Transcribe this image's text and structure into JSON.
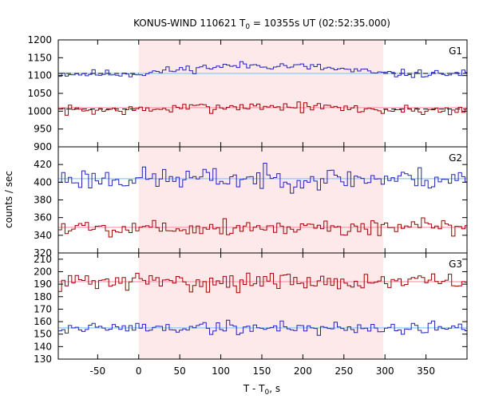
{
  "chart_data": {
    "type": "line",
    "title": "KONUS-WIND 110621 T",
    "title_sub": "0",
    "title_rest": " = 10355s UT (02:52:35.000)",
    "xlabel": "T - T",
    "xlabel_sub": "0",
    "xlabel_rest": ", s",
    "ylabel": "counts / sec",
    "xlim": [
      -98,
      400
    ],
    "x_ticks": [
      -50,
      0,
      50,
      100,
      150,
      200,
      250,
      300,
      350
    ],
    "x_tick_labels": [
      "-50",
      "0",
      "50",
      "100",
      "150",
      "200",
      "250",
      "300",
      "350"
    ],
    "shaded_interval": [
      0,
      298
    ],
    "bin_width_s": 4.096,
    "colors": {
      "blue": "#2222bb",
      "red": "#a00000",
      "blue_fit": "#87cefa",
      "red_fit": "#ff9ab2",
      "dashed": "#000000",
      "shade": "#fde8ea"
    },
    "panels": [
      {
        "label": "G1",
        "ylim": [
          900,
          1200
        ],
        "y_ticks": [
          900,
          950,
          1000,
          1050,
          1100,
          1150,
          1200
        ],
        "y_tick_labels": [
          "900",
          "950",
          "1000",
          "1050",
          "1100",
          "1150",
          "1200"
        ],
        "series": [
          {
            "color": "blue",
            "base": 1105,
            "amp": 8,
            "src": 26,
            "seed": 11,
            "fit": 1106,
            "bg_dashed": 1106,
            "bg_dashed_ranges": [
              [
                -98,
                0
              ],
              [
                298,
                400
              ]
            ]
          },
          {
            "color": "red",
            "base": 1003,
            "amp": 10,
            "src": 12,
            "seed": 7,
            "fit": 1010,
            "bg_dashed": 1006,
            "bg_dashed_ranges": [
              [
                -98,
                0
              ],
              [
                298,
                400
              ]
            ]
          }
        ]
      },
      {
        "label": "G2",
        "ylim": [
          320,
          440
        ],
        "y_ticks": [
          320,
          340,
          360,
          380,
          400,
          420
        ],
        "y_tick_labels": [
          "320",
          "340",
          "360",
          "380",
          "400",
          "420"
        ],
        "series": [
          {
            "color": "blue",
            "base": 404,
            "amp": 9,
            "src": 0,
            "seed": 23,
            "fit": 404
          },
          {
            "color": "red",
            "base": 349,
            "amp": 7,
            "src": 0,
            "seed": 5,
            "fit": 349
          }
        ]
      },
      {
        "label": "G3",
        "ylim": [
          130,
          215
        ],
        "y_ticks": [
          130,
          140,
          150,
          160,
          170,
          180,
          190,
          200,
          210
        ],
        "y_tick_labels": [
          "130",
          "140",
          "150",
          "160",
          "170",
          "180",
          "190",
          "200",
          "210"
        ],
        "series": [
          {
            "color": "red",
            "base": 192,
            "amp": 5,
            "src": 0,
            "seed": 31,
            "fit": 192
          },
          {
            "color": "blue",
            "base": 155,
            "amp": 4,
            "src": 0,
            "seed": 19,
            "fit": 155
          }
        ]
      }
    ]
  }
}
